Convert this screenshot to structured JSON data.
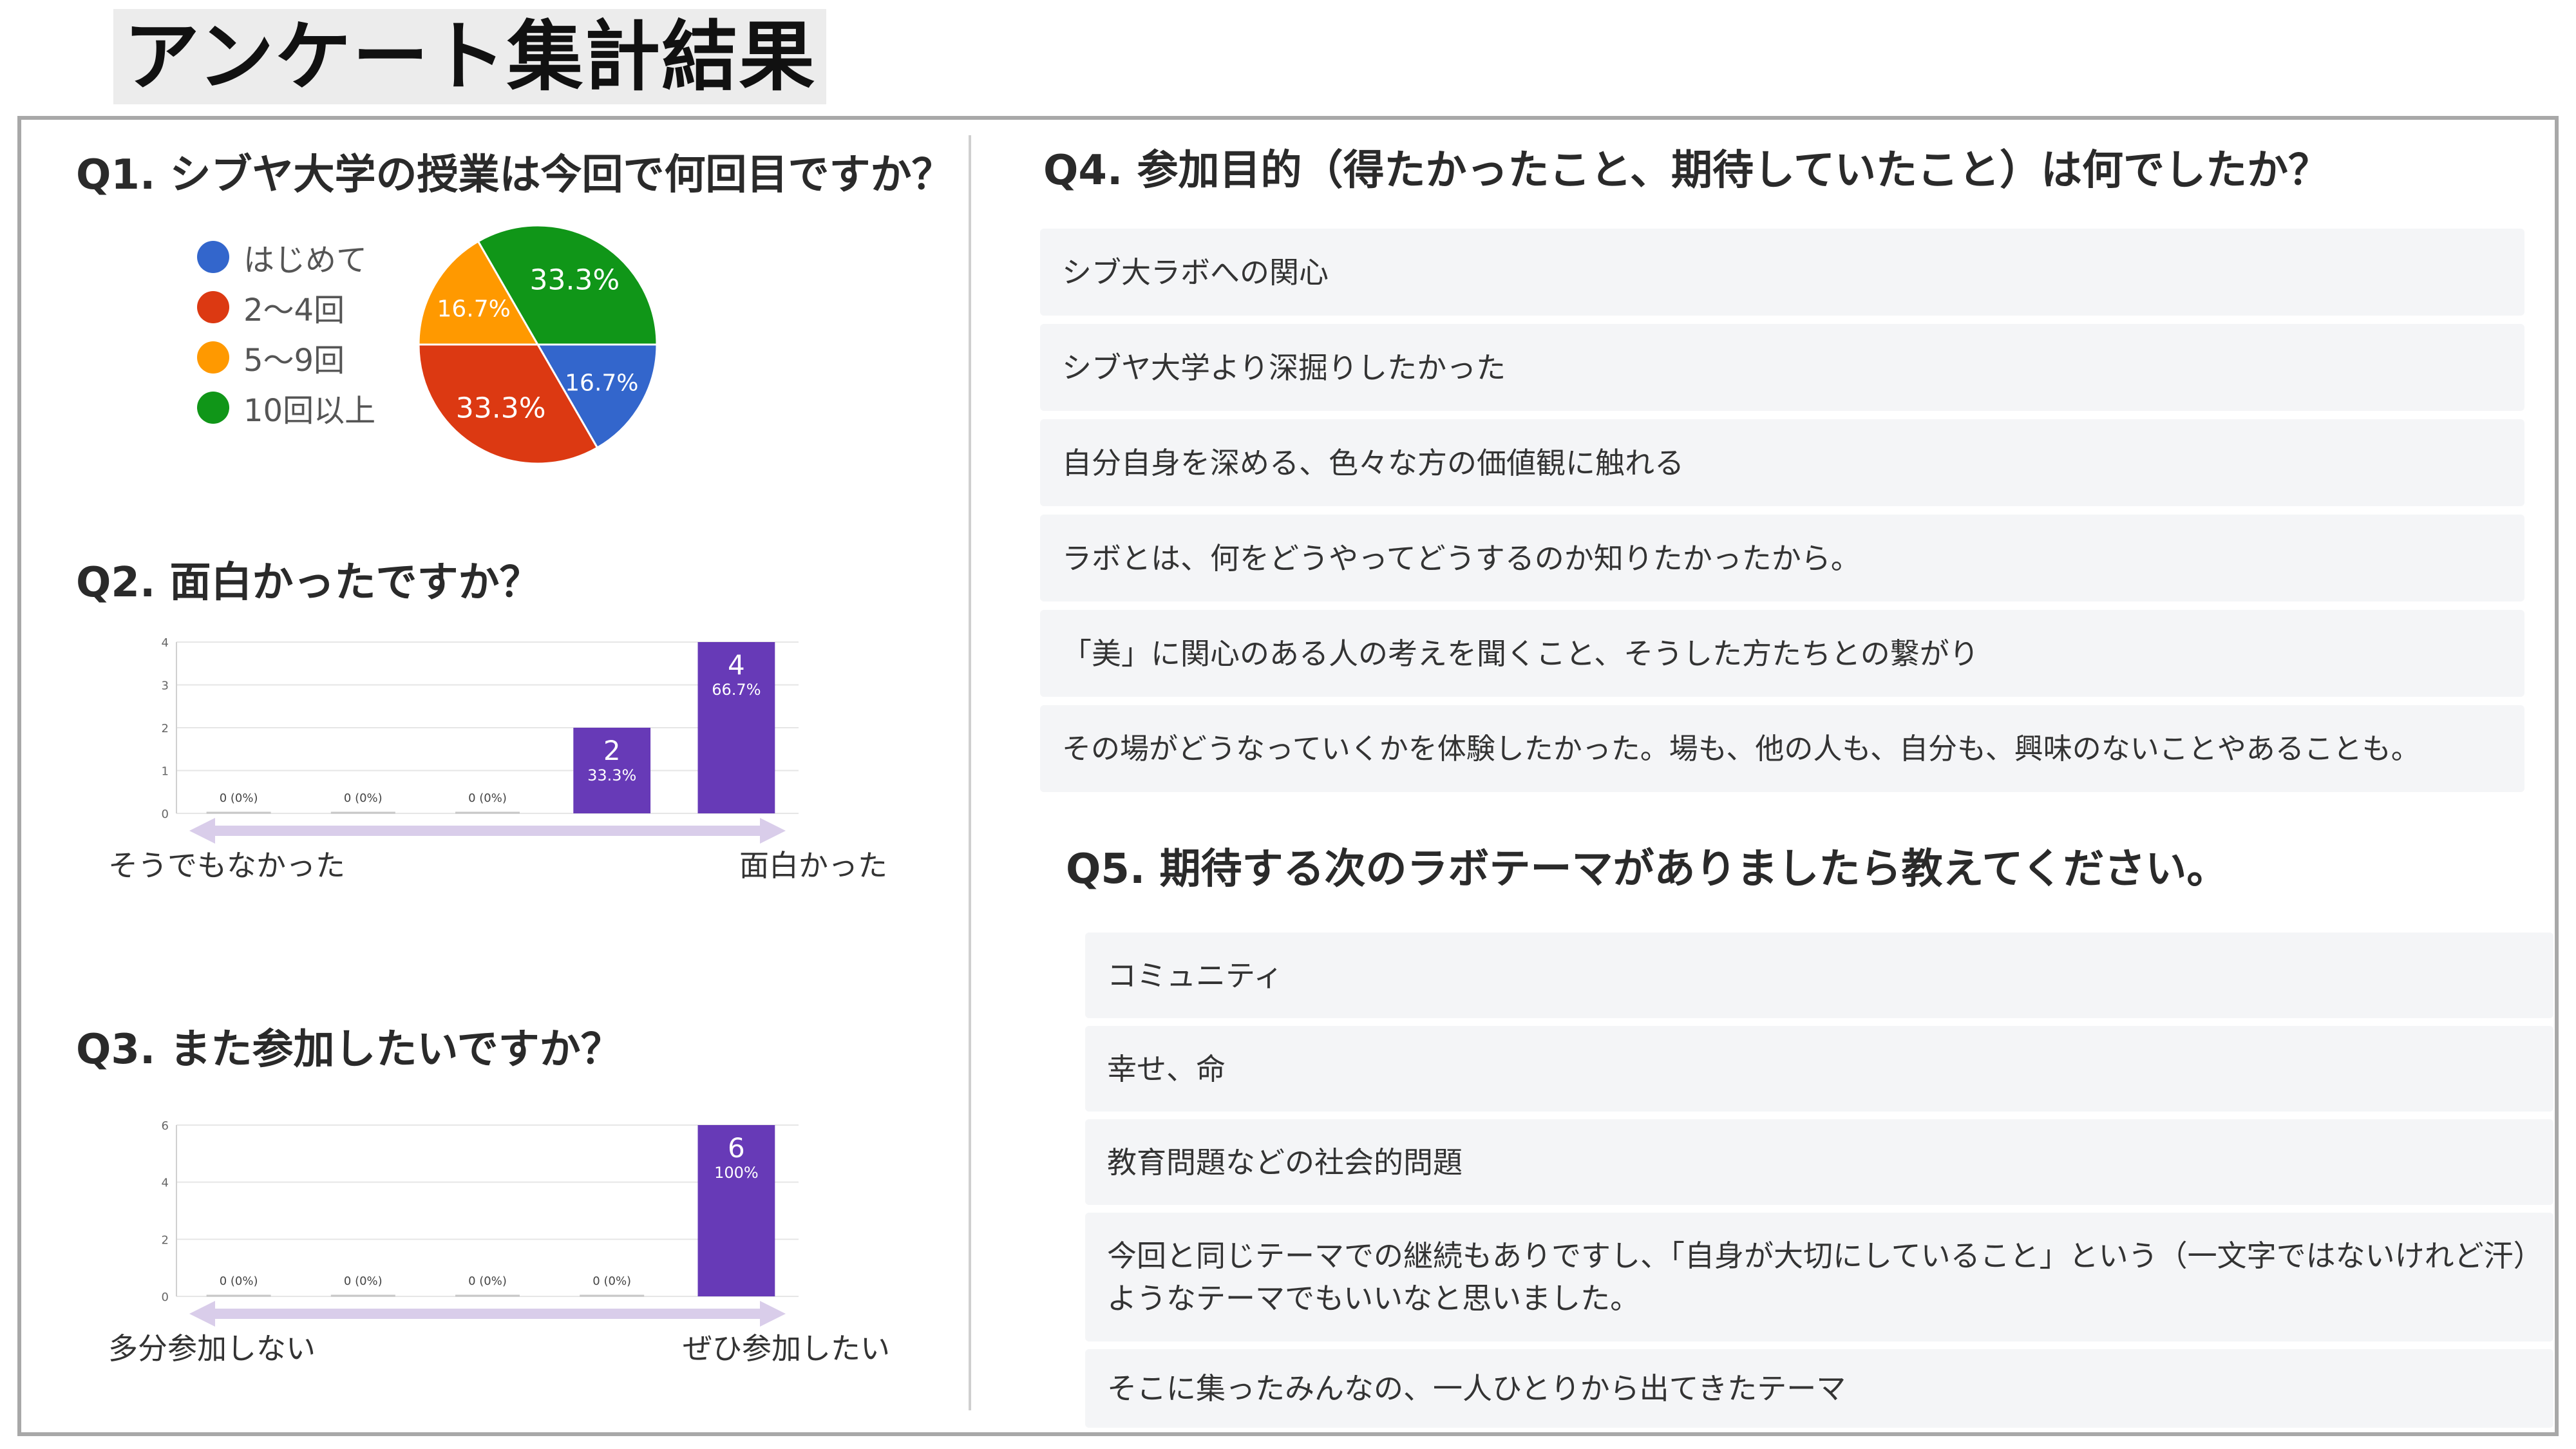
{
  "title": "アンケート集計結果",
  "q1": {
    "heading": "Q1. シブヤ大学の授業は今回で何回目ですか？",
    "legend": [
      "はじめて",
      "2〜4回",
      "5〜9回",
      "10回以上"
    ]
  },
  "q2": {
    "heading": "Q2. 面白かったですか？",
    "axis_left": "そうでもなかった",
    "axis_right": "面白かった"
  },
  "q3": {
    "heading": "Q3. また参加したいですか？",
    "axis_left": "多分参加しない",
    "axis_right": "ぜひ参加したい"
  },
  "q4": {
    "heading": "Q4. 参加目的（得たかったこと、期待していたこと）は何でしたか？",
    "responses": [
      "シブ大ラボへの関心",
      "シブヤ大学より深掘りしたかった",
      "自分自身を深める、色々な方の価値観に触れる",
      "ラボとは、何をどうやってどうするのか知りたかったから。",
      "「美」に関心のある人の考えを聞くこと、そうした方たちとの繋がり",
      "その場がどうなっていくかを体験したかった。場も、他の人も、自分も、興味のないことやあることも。"
    ]
  },
  "q5": {
    "heading": "Q5. 期待する次のラボテーマがありましたら教えてください。",
    "responses": [
      "コミュニティ",
      "幸せ、命",
      "教育問題などの社会的問題",
      "今回と同じテーマでの継続もありですし、「自身が大切にしていること」という（一文字ではないけれど汗）ようなテーマでもいいなと思いました。",
      "そこに集ったみんなの、一人ひとりから出てきたテーマ"
    ]
  },
  "chart_data": [
    {
      "type": "pie",
      "categories": [
        "はじめて",
        "2〜4回",
        "5〜9回",
        "10回以上"
      ],
      "values": [
        1,
        2,
        1,
        2
      ],
      "labels": [
        "16.7%",
        "33.3%",
        "16.7%",
        "33.3%"
      ],
      "colors": [
        "#3366cc",
        "#dc3912",
        "#ff9900",
        "#109618"
      ],
      "legend": "left"
    },
    {
      "type": "bar",
      "categories": [
        "1",
        "2",
        "3",
        "4",
        "5"
      ],
      "values": [
        0,
        0,
        0,
        2,
        4
      ],
      "labels": [
        "0 (0%)",
        "0 (0%)",
        "0 (0%)",
        "33.3%",
        "66.7%"
      ],
      "ylim": [
        0,
        4
      ],
      "yticks": [
        0,
        1,
        2,
        3,
        4
      ],
      "color": "#673ab7"
    },
    {
      "type": "bar",
      "categories": [
        "1",
        "2",
        "3",
        "4",
        "5"
      ],
      "values": [
        0,
        0,
        0,
        0,
        6
      ],
      "labels": [
        "0 (0%)",
        "0 (0%)",
        "0 (0%)",
        "0 (0%)",
        "100%"
      ],
      "ylim": [
        0,
        6
      ],
      "yticks": [
        0,
        2,
        4,
        6
      ],
      "color": "#673ab7"
    }
  ]
}
